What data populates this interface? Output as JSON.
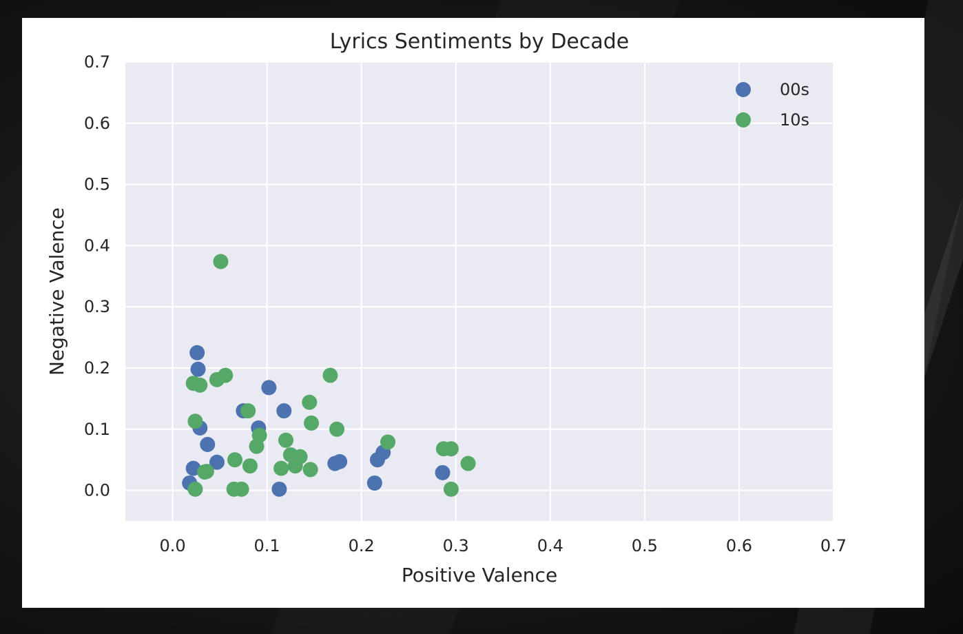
{
  "chart_data": {
    "type": "scatter",
    "title": "Lyrics Sentiments by Decade",
    "xlabel": "Positive Valence",
    "ylabel": "Negative  Valence",
    "xlim": [
      -0.05,
      0.7
    ],
    "ylim": [
      -0.05,
      0.7
    ],
    "xticks": [
      "0.0",
      "0.1",
      "0.2",
      "0.3",
      "0.4",
      "0.5",
      "0.6",
      "0.7"
    ],
    "yticks": [
      "0.0",
      "0.1",
      "0.2",
      "0.3",
      "0.4",
      "0.5",
      "0.6",
      "0.7"
    ],
    "grid": true,
    "legend_position": "top-right",
    "colors": {
      "plot_bg": "#eaeaf2",
      "grid": "#ffffff"
    },
    "series": [
      {
        "name": "00s",
        "color": "#4c72b0",
        "points": [
          [
            0.026,
            0.225
          ],
          [
            0.027,
            0.198
          ],
          [
            0.029,
            0.102
          ],
          [
            0.037,
            0.075
          ],
          [
            0.018,
            0.012
          ],
          [
            0.022,
            0.036
          ],
          [
            0.047,
            0.046
          ],
          [
            0.075,
            0.13
          ],
          [
            0.091,
            0.102
          ],
          [
            0.102,
            0.168
          ],
          [
            0.113,
            0.002
          ],
          [
            0.118,
            0.13
          ],
          [
            0.172,
            0.044
          ],
          [
            0.177,
            0.047
          ],
          [
            0.214,
            0.012
          ],
          [
            0.217,
            0.05
          ],
          [
            0.223,
            0.062
          ],
          [
            0.286,
            0.029
          ]
        ]
      },
      {
        "name": "10s",
        "color": "#55a868",
        "points": [
          [
            0.051,
            0.374
          ],
          [
            0.022,
            0.175
          ],
          [
            0.029,
            0.172
          ],
          [
            0.047,
            0.181
          ],
          [
            0.056,
            0.188
          ],
          [
            0.024,
            0.113
          ],
          [
            0.024,
            0.002
          ],
          [
            0.034,
            0.03
          ],
          [
            0.036,
            0.031
          ],
          [
            0.065,
            0.002
          ],
          [
            0.073,
            0.002
          ],
          [
            0.066,
            0.05
          ],
          [
            0.082,
            0.04
          ],
          [
            0.08,
            0.13
          ],
          [
            0.089,
            0.072
          ],
          [
            0.092,
            0.09
          ],
          [
            0.115,
            0.036
          ],
          [
            0.12,
            0.082
          ],
          [
            0.125,
            0.058
          ],
          [
            0.13,
            0.04
          ],
          [
            0.135,
            0.055
          ],
          [
            0.145,
            0.144
          ],
          [
            0.146,
            0.034
          ],
          [
            0.147,
            0.11
          ],
          [
            0.167,
            0.188
          ],
          [
            0.174,
            0.1
          ],
          [
            0.228,
            0.079
          ],
          [
            0.287,
            0.068
          ],
          [
            0.295,
            0.068
          ],
          [
            0.295,
            0.002
          ],
          [
            0.313,
            0.044
          ]
        ]
      }
    ]
  }
}
